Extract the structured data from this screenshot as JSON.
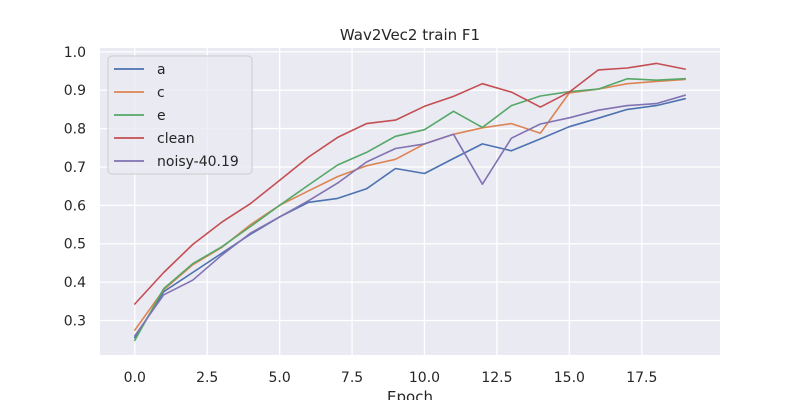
{
  "chart_data": {
    "type": "line",
    "title": "Wav2Vec2 train F1",
    "xlabel": "Epoch",
    "ylabel": "",
    "xlim": [
      -1.2,
      20.2
    ],
    "ylim": [
      0.21,
      1.01
    ],
    "x_ticks": [
      0.0,
      2.5,
      5.0,
      7.5,
      10.0,
      12.5,
      15.0,
      17.5
    ],
    "x_tick_labels": [
      "0.0",
      "2.5",
      "5.0",
      "7.5",
      "10.0",
      "12.5",
      "15.0",
      "17.5"
    ],
    "y_ticks": [
      0.3,
      0.4,
      0.5,
      0.6,
      0.7,
      0.8,
      0.9,
      1.0
    ],
    "y_tick_labels": [
      "0.3",
      "0.4",
      "0.5",
      "0.6",
      "0.7",
      "0.8",
      "0.9",
      "1.0"
    ],
    "grid": true,
    "legend_position": "top-left",
    "background": "#eaeaf2",
    "x": [
      0,
      1,
      2,
      3,
      4,
      5,
      6,
      7,
      8,
      9,
      10,
      11,
      12,
      13,
      14,
      15,
      16,
      17,
      18,
      19
    ],
    "series": [
      {
        "name": "a",
        "color": "#4c72b0",
        "values": [
          0.255,
          0.375,
          0.425,
          0.475,
          0.525,
          0.57,
          0.608,
          0.618,
          0.643,
          0.696,
          0.683,
          0.722,
          0.76,
          0.742,
          0.773,
          0.805,
          0.827,
          0.85,
          0.86,
          0.878
        ]
      },
      {
        "name": "c",
        "color": "#dd8452",
        "values": [
          0.275,
          0.38,
          0.445,
          0.49,
          0.55,
          0.6,
          0.638,
          0.675,
          0.703,
          0.72,
          0.76,
          0.785,
          0.802,
          0.813,
          0.788,
          0.893,
          0.903,
          0.917,
          0.923,
          0.928
        ]
      },
      {
        "name": "e",
        "color": "#55a868",
        "values": [
          0.248,
          0.383,
          0.448,
          0.492,
          0.545,
          0.6,
          0.653,
          0.705,
          0.738,
          0.78,
          0.797,
          0.845,
          0.803,
          0.86,
          0.885,
          0.896,
          0.903,
          0.93,
          0.926,
          0.93
        ]
      },
      {
        "name": "clean",
        "color": "#c44e52",
        "values": [
          0.343,
          0.425,
          0.498,
          0.556,
          0.605,
          0.665,
          0.726,
          0.777,
          0.813,
          0.822,
          0.858,
          0.884,
          0.917,
          0.895,
          0.856,
          0.895,
          0.953,
          0.958,
          0.97,
          0.955
        ]
      },
      {
        "name": "noisy-40.19",
        "color": "#8172b3",
        "values": [
          0.26,
          0.367,
          0.405,
          0.47,
          0.528,
          0.57,
          0.612,
          0.658,
          0.713,
          0.748,
          0.76,
          0.785,
          0.655,
          0.775,
          0.812,
          0.828,
          0.848,
          0.86,
          0.865,
          0.887
        ]
      }
    ]
  }
}
